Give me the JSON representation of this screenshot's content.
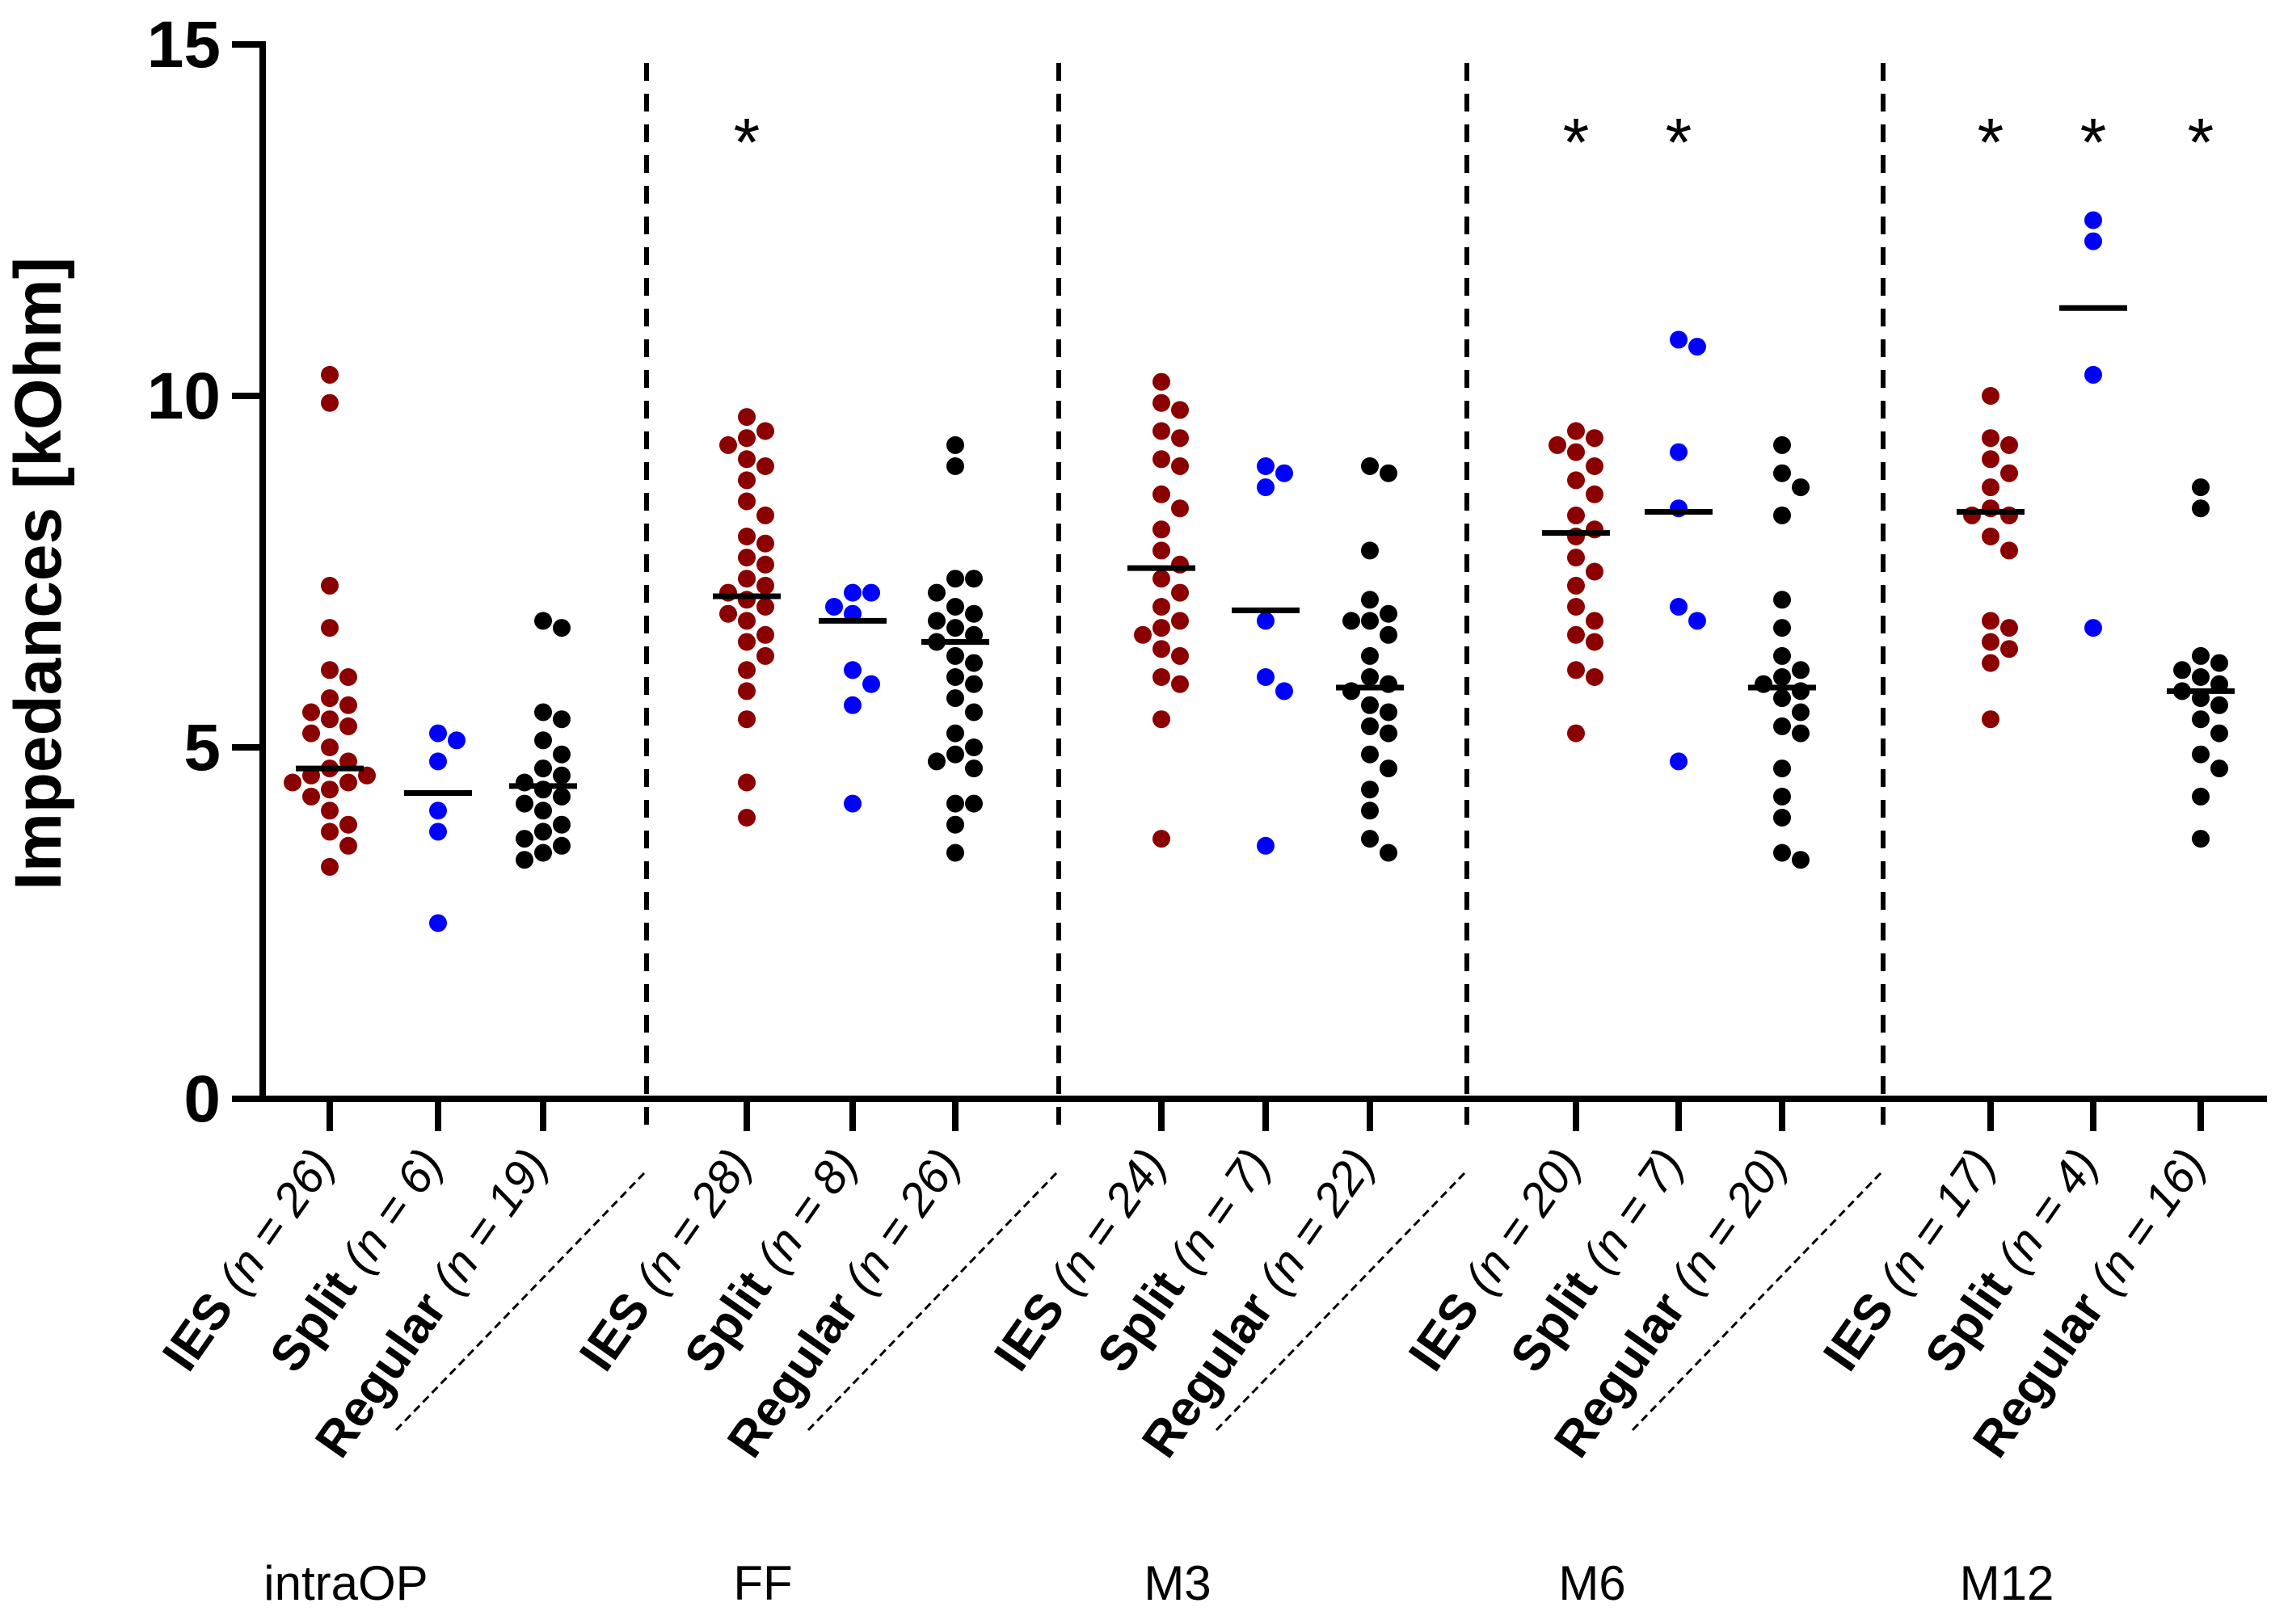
{
  "chart_data": {
    "type": "scatter",
    "ylabel": "Impedances  [kOhm]",
    "ylim": [
      0,
      15
    ],
    "yticks": [
      0,
      5,
      10,
      15
    ],
    "colors": {
      "IES": "#8b0000",
      "Split": "#0000ff",
      "Regular": "#000000",
      "axis": "#000000"
    },
    "groups": [
      {
        "label": "intraOP",
        "categories": [
          {
            "name": "IES",
            "n": "(n = 26)",
            "mean": 4.7,
            "values": [
              10.3,
              9.9,
              7.3,
              6.7,
              6.1,
              6.0,
              5.7,
              5.6,
              5.5,
              5.4,
              5.3,
              5.2,
              5.0,
              4.8,
              4.7,
              4.6,
              4.6,
              4.5,
              4.5,
              4.4,
              4.3,
              4.1,
              3.9,
              3.8,
              3.6,
              3.3
            ]
          },
          {
            "name": "Split",
            "n": "(n = 6)",
            "mean": 4.35,
            "values": [
              5.2,
              5.1,
              4.8,
              4.1,
              3.8,
              2.5
            ]
          },
          {
            "name": "Regular",
            "n": "(n = 19)",
            "mean": 4.45,
            "values": [
              6.8,
              6.7,
              5.5,
              5.4,
              5.1,
              4.9,
              4.7,
              4.6,
              4.5,
              4.4,
              4.3,
              4.2,
              4.1,
              3.9,
              3.8,
              3.7,
              3.6,
              3.5,
              3.4
            ]
          }
        ]
      },
      {
        "label": "FF",
        "stars": [
          "IES"
        ],
        "categories": [
          {
            "name": "IES",
            "n": "(n = 28)",
            "mean": 7.15,
            "values": [
              9.7,
              9.5,
              9.4,
              9.3,
              9.1,
              9.0,
              8.8,
              8.5,
              8.3,
              8.0,
              7.9,
              7.7,
              7.6,
              7.4,
              7.3,
              7.2,
              7.1,
              7.0,
              6.9,
              6.8,
              6.6,
              6.5,
              6.3,
              6.1,
              5.8,
              5.4,
              4.5,
              4.0
            ]
          },
          {
            "name": "Split",
            "n": "(n = 8)",
            "mean": 6.8,
            "values": [
              7.2,
              7.2,
              7.0,
              6.9,
              6.1,
              5.9,
              5.6,
              4.2
            ]
          },
          {
            "name": "Regular",
            "n": "(n = 26)",
            "mean": 6.5,
            "values": [
              9.3,
              9.0,
              7.4,
              7.4,
              7.2,
              7.0,
              6.9,
              6.8,
              6.7,
              6.6,
              6.5,
              6.3,
              6.2,
              6.0,
              5.9,
              5.7,
              5.5,
              5.2,
              5.0,
              4.9,
              4.8,
              4.7,
              4.2,
              4.2,
              3.9,
              3.5
            ]
          }
        ]
      },
      {
        "label": "M3",
        "categories": [
          {
            "name": "IES",
            "n": "(n = 24)",
            "mean": 7.55,
            "values": [
              10.2,
              9.9,
              9.8,
              9.5,
              9.4,
              9.1,
              9.0,
              8.6,
              8.4,
              8.1,
              7.8,
              7.6,
              7.4,
              7.2,
              7.0,
              6.8,
              6.7,
              6.6,
              6.4,
              6.3,
              6.0,
              5.9,
              5.4,
              3.7
            ]
          },
          {
            "name": "Split",
            "n": "(n = 7)",
            "mean": 6.95,
            "values": [
              9.0,
              8.9,
              8.7,
              6.8,
              6.0,
              5.8,
              3.6
            ]
          },
          {
            "name": "Regular",
            "n": "(n = 22)",
            "mean": 5.85,
            "values": [
              9.0,
              8.9,
              7.8,
              7.1,
              6.9,
              6.8,
              6.8,
              6.6,
              6.3,
              6.0,
              5.9,
              5.8,
              5.6,
              5.5,
              5.3,
              5.2,
              4.9,
              4.7,
              4.4,
              4.1,
              3.7,
              3.5
            ]
          }
        ]
      },
      {
        "label": "M6",
        "stars": [
          "IES",
          "Split"
        ],
        "categories": [
          {
            "name": "IES",
            "n": "(n = 20)",
            "mean": 8.05,
            "values": [
              9.5,
              9.4,
              9.3,
              9.2,
              9.0,
              8.8,
              8.6,
              8.3,
              8.1,
              8.0,
              7.7,
              7.5,
              7.3,
              7.0,
              6.8,
              6.6,
              6.5,
              6.1,
              6.0,
              5.2
            ]
          },
          {
            "name": "Split",
            "n": "(n = 7)",
            "mean": 8.35,
            "values": [
              10.8,
              10.7,
              9.2,
              8.4,
              7.0,
              6.8,
              4.8
            ]
          },
          {
            "name": "Regular",
            "n": "(n = 20)",
            "mean": 5.85,
            "values": [
              9.3,
              8.9,
              8.7,
              8.3,
              7.1,
              6.7,
              6.3,
              6.1,
              6.0,
              5.9,
              5.8,
              5.7,
              5.5,
              5.3,
              5.2,
              4.7,
              4.3,
              4.0,
              3.5,
              3.4
            ]
          }
        ]
      },
      {
        "label": "M12",
        "stars": [
          "IES",
          "Split",
          "Regular"
        ],
        "categories": [
          {
            "name": "IES",
            "n": "(n = 17)",
            "mean": 8.35,
            "values": [
              10.0,
              9.4,
              9.3,
              9.1,
              8.9,
              8.7,
              8.4,
              8.3,
              8.3,
              8.0,
              7.8,
              6.8,
              6.7,
              6.5,
              6.4,
              6.2,
              5.4
            ]
          },
          {
            "name": "Split",
            "n": "(n = 4)",
            "mean": 11.25,
            "values": [
              12.5,
              12.2,
              10.3,
              6.7
            ]
          },
          {
            "name": "Regular",
            "n": "(n = 16)",
            "mean": 5.8,
            "values": [
              8.7,
              8.4,
              6.3,
              6.2,
              6.1,
              6.0,
              5.9,
              5.8,
              5.7,
              5.6,
              5.4,
              5.2,
              4.9,
              4.7,
              4.3,
              3.7
            ]
          }
        ]
      }
    ]
  }
}
